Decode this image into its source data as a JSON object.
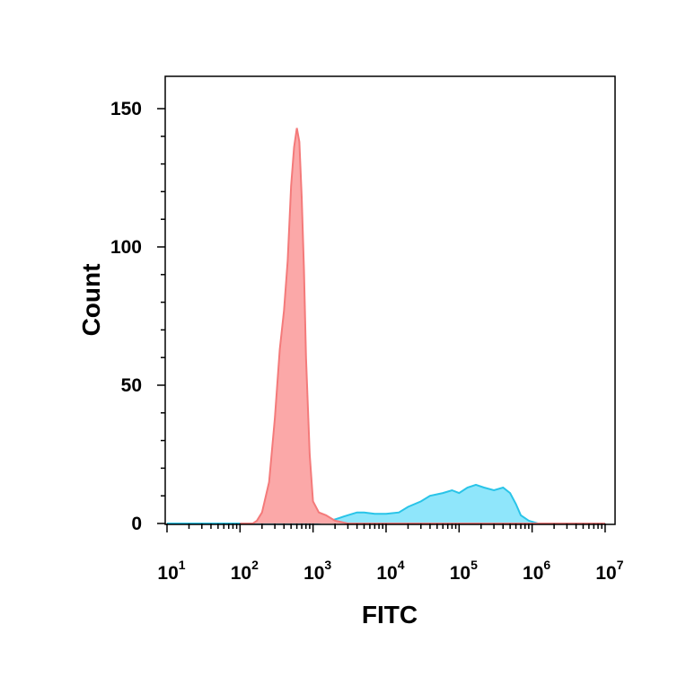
{
  "chart_data": {
    "type": "area",
    "title": "",
    "xlabel": "FITC",
    "ylabel": "Count",
    "x_scale": "log",
    "xlim": [
      10,
      10000000
    ],
    "ylim": [
      0,
      150
    ],
    "grid": false,
    "legend": "none",
    "y_ticks": [
      0,
      50,
      100,
      150
    ],
    "x_ticks": [
      {
        "value": 10,
        "base": "10",
        "exp": "1"
      },
      {
        "value": 100,
        "base": "10",
        "exp": "2"
      },
      {
        "value": 1000,
        "base": "10",
        "exp": "3"
      },
      {
        "value": 10000,
        "base": "10",
        "exp": "4"
      },
      {
        "value": 100000,
        "base": "10",
        "exp": "5"
      },
      {
        "value": 1000000,
        "base": "10",
        "exp": "6"
      },
      {
        "value": 10000000,
        "base": "10",
        "exp": "7"
      }
    ],
    "series": [
      {
        "color": "#f47a7a",
        "fill": "#fba8a8",
        "points": [
          [
            100,
            0
          ],
          [
            150,
            0
          ],
          [
            170,
            1
          ],
          [
            200,
            4
          ],
          [
            250,
            15
          ],
          [
            300,
            38
          ],
          [
            350,
            63
          ],
          [
            400,
            77
          ],
          [
            450,
            95
          ],
          [
            500,
            122
          ],
          [
            550,
            136
          ],
          [
            600,
            143
          ],
          [
            650,
            138
          ],
          [
            700,
            118
          ],
          [
            750,
            92
          ],
          [
            800,
            60
          ],
          [
            900,
            25
          ],
          [
            1000,
            8
          ],
          [
            1200,
            4
          ],
          [
            1500,
            3
          ],
          [
            2000,
            1
          ],
          [
            3000,
            0
          ],
          [
            10000000,
            0
          ]
        ]
      },
      {
        "color": "#29c4e8",
        "fill": "#8fe6fb",
        "points": [
          [
            10,
            0
          ],
          [
            1000,
            0
          ],
          [
            1500,
            0.5
          ],
          [
            2000,
            1.5
          ],
          [
            3000,
            3
          ],
          [
            4000,
            4
          ],
          [
            5000,
            4
          ],
          [
            7000,
            3.5
          ],
          [
            10000,
            3.5
          ],
          [
            15000,
            4
          ],
          [
            20000,
            6
          ],
          [
            30000,
            8
          ],
          [
            40000,
            10
          ],
          [
            60000,
            11
          ],
          [
            80000,
            12
          ],
          [
            100000,
            11
          ],
          [
            130000,
            13
          ],
          [
            170000,
            14
          ],
          [
            220000,
            13
          ],
          [
            300000,
            12
          ],
          [
            400000,
            13
          ],
          [
            500000,
            11
          ],
          [
            600000,
            7
          ],
          [
            700000,
            3
          ],
          [
            900000,
            1
          ],
          [
            1200000,
            0
          ],
          [
            10000000,
            0
          ]
        ]
      }
    ]
  }
}
